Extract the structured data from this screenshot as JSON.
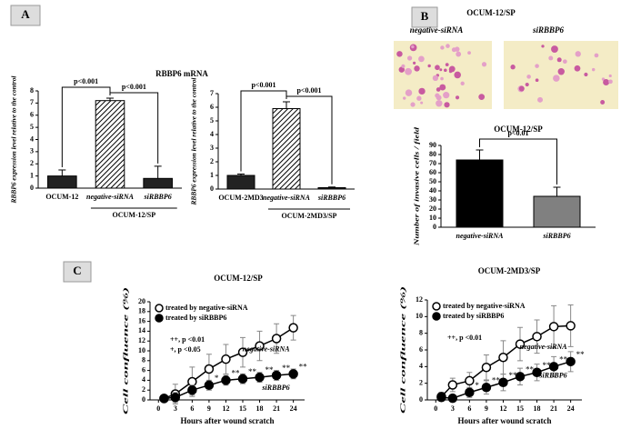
{
  "panel_labels": [
    "A",
    "B",
    "C"
  ],
  "section_a_title": "RBBP6 mRNA",
  "figure_b": {
    "title": "OCUM-12/SP",
    "image_labels": [
      "negative-siRNA",
      "siRBBP6"
    ]
  },
  "chart_data": [
    {
      "type": "bar",
      "ylabel": "RBBP6 expression level relative to the control",
      "categories": [
        "OCUM-12",
        "negative-siRNA",
        "siRBBP6"
      ],
      "italic_categories": [
        false,
        true,
        true
      ],
      "values": [
        1.0,
        7.2,
        0.8
      ],
      "errors": [
        0.5,
        0.2,
        1.0
      ],
      "colors": [
        "#222222",
        "#222222",
        "#222222"
      ],
      "hatched": [
        false,
        true,
        false
      ],
      "group_label": "OCUM-12/SP",
      "annotations": [
        "p<0.001",
        "p<0.001"
      ],
      "ylim": [
        0,
        8
      ],
      "yticks": [
        0,
        1,
        2,
        3,
        4,
        5,
        6,
        7,
        8
      ]
    },
    {
      "type": "bar",
      "ylabel": "RBBP6 expression level relative to the control",
      "categories": [
        "OCUM-2MD3",
        "negative-siRNA",
        "siRBBP6"
      ],
      "italic_categories": [
        false,
        true,
        true
      ],
      "values": [
        1.0,
        5.9,
        0.1
      ],
      "errors": [
        0.1,
        0.5,
        0.05
      ],
      "colors": [
        "#222222",
        "#222222",
        "#222222"
      ],
      "hatched": [
        false,
        true,
        false
      ],
      "group_label": "OCUM-2MD3/SP",
      "annotations": [
        "p<0.001",
        "p<0.001"
      ],
      "ylim": [
        0,
        7
      ],
      "yticks": [
        0,
        1,
        2,
        3,
        4,
        5,
        6,
        7
      ]
    },
    {
      "type": "bar",
      "title": "OCUM-12/SP",
      "ylabel": "Number of invasive cells / field",
      "categories": [
        "negative-siRNA",
        "siRBBP6"
      ],
      "italic_categories": [
        true,
        true
      ],
      "values": [
        74,
        34
      ],
      "errors": [
        11,
        10
      ],
      "colors": [
        "#000000",
        "#808080"
      ],
      "hatched": [
        false,
        false
      ],
      "annotations": [
        "p<0.01"
      ],
      "ylim": [
        0,
        90
      ],
      "yticks": [
        0,
        10,
        20,
        30,
        40,
        50,
        60,
        70,
        80,
        90
      ]
    },
    {
      "type": "line",
      "title": "OCUM-12/SP",
      "xlabel": "Hours after wound scratch",
      "ylabel": "Cell confluence (%)",
      "x": [
        1,
        3,
        6,
        9,
        12,
        15,
        18,
        21,
        24
      ],
      "series": [
        {
          "name": "treated by negative-siRNA",
          "label": "negative-siRNA",
          "color": "#000000",
          "marker": "open",
          "values": [
            0.3,
            1.2,
            3.7,
            6.3,
            8.3,
            9.7,
            11,
            12.5,
            14.7
          ],
          "errors": [
            0.5,
            2,
            3,
            3,
            3,
            3,
            3,
            3,
            2.5
          ]
        },
        {
          "name": "treated by siRBBP6",
          "label": "siRBBP6",
          "color": "#000000",
          "marker": "filled",
          "values": [
            0.3,
            0.5,
            2,
            3,
            4,
            4.3,
            4.6,
            5,
            5.3
          ],
          "errors": [
            0.3,
            1,
            1,
            1,
            1,
            1,
            1,
            1,
            1
          ],
          "sig_labels": [
            null,
            null,
            null,
            "*",
            "**",
            "**",
            "**",
            "**",
            "**"
          ]
        }
      ],
      "annotations": [
        "++, p <0.01",
        "+, p <0.05"
      ],
      "xlim": [
        -1.5,
        26
      ],
      "xticks": [
        0,
        3,
        6,
        9,
        12,
        15,
        18,
        21,
        24
      ],
      "ylim": [
        0,
        20
      ],
      "yticks": [
        0,
        2,
        4,
        6,
        8,
        10,
        12,
        14,
        16,
        18,
        20
      ]
    },
    {
      "type": "line",
      "title": "OCUM-2MD3/SP",
      "xlabel": "Hours after wound scratch",
      "ylabel": "Cell confluence (%)",
      "x": [
        1,
        3,
        6,
        9,
        12,
        15,
        18,
        21,
        24
      ],
      "series": [
        {
          "name": "treated by negative-siRNA",
          "label": "negative-siRNA",
          "color": "#000000",
          "marker": "open",
          "values": [
            0.4,
            1.8,
            2.3,
            3.9,
            5.1,
            6.7,
            7.6,
            8.8,
            8.9
          ],
          "errors": [
            0.5,
            0.8,
            1,
            1.5,
            2,
            2,
            2,
            2.5,
            2.5
          ]
        },
        {
          "name": "treated by siRBBP6",
          "label": "siRBBP6",
          "color": "#000000",
          "marker": "filled",
          "values": [
            0.3,
            0.2,
            0.9,
            1.5,
            2.1,
            2.8,
            3.3,
            4,
            4.6
          ],
          "errors": [
            0.3,
            0.3,
            0.6,
            0.8,
            1,
            1,
            1,
            1.2,
            1.2
          ],
          "sig_labels": [
            null,
            null,
            "*",
            "**",
            "**",
            "**",
            "**",
            "**",
            "**"
          ]
        }
      ],
      "annotations": [
        "++, p <0.01"
      ],
      "xlim": [
        -1.5,
        26
      ],
      "xticks": [
        0,
        3,
        6,
        9,
        12,
        15,
        18,
        21,
        24
      ],
      "ylim": [
        0,
        12
      ],
      "yticks": [
        0,
        2,
        4,
        6,
        8,
        10,
        12
      ]
    }
  ]
}
